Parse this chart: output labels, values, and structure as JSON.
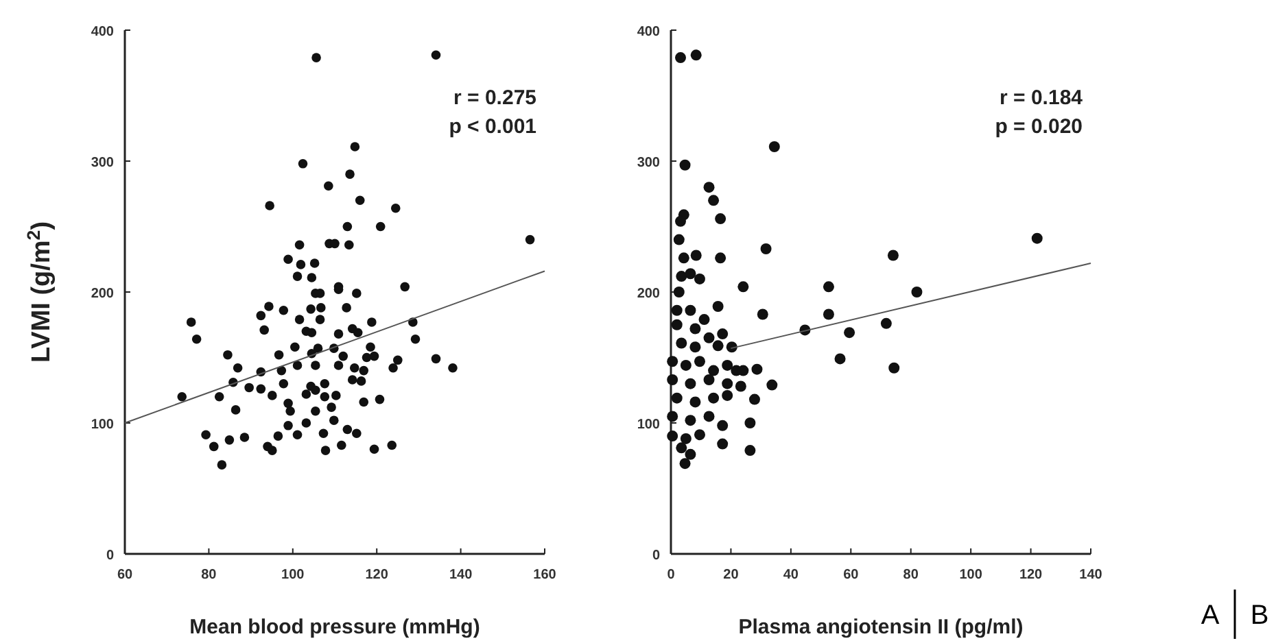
{
  "chart_data": [
    {
      "type": "scatter",
      "xlabel": "Mean blood pressure (mmHg)",
      "ylabel": "LVMI (g/m$^{2}$)",
      "xlim": [
        60,
        160
      ],
      "xticks": [
        60,
        80,
        100,
        120,
        140,
        160
      ],
      "ylim": [
        0,
        400
      ],
      "yticks": [
        0,
        100,
        200,
        300,
        400
      ],
      "grid": false,
      "marker": "circle",
      "annotations": [
        "r = 0.275",
        "p < 0.001"
      ],
      "series": [
        {
          "color": "#111111",
          "x": [
            105.6,
            134.1,
            114.8,
            102.4,
            113.6,
            108.5,
            116,
            94.5,
            124.5,
            113,
            120.9,
            156.5,
            101.6,
            108.7,
            110,
            113.4,
            98.9,
            101.9,
            105.2,
            110.9,
            126.7,
            101.1,
            104.5,
            110.9,
            105.4,
            106.5,
            115.2,
            94.3,
            97.8,
            92.4,
            104.3,
            106.7,
            112.8,
            101.6,
            106.5,
            75.8,
            118.8,
            128.6,
            103.2,
            104.5,
            93.2,
            77.1,
            110.9,
            114.2,
            115.5,
            129.2,
            100.5,
            106,
            109.8,
            118.5,
            84.5,
            96.7,
            104.5,
            112,
            117.6,
            119.4,
            134.1,
            125,
            138.1,
            86.9,
            92.4,
            97.3,
            101.1,
            105.4,
            110.9,
            114.7,
            116.9,
            123.9,
            85.8,
            89.6,
            92.4,
            97.8,
            104.3,
            107.6,
            114.2,
            116.3,
            73.6,
            82.5,
            95.1,
            98.9,
            103.2,
            105.4,
            107.6,
            110.3,
            116.9,
            120.7,
            86.4,
            99.4,
            105.4,
            109.2,
            98.9,
            103.2,
            109.8,
            113,
            115.2,
            79.3,
            84.9,
            88.5,
            96.5,
            101.1,
            107.3,
            81.2,
            94,
            95.1,
            107.8,
            111.6,
            119.4,
            123.6,
            83.1
          ],
          "values": [
            379,
            381,
            311,
            298,
            290,
            281,
            270,
            266,
            264,
            250,
            250,
            240,
            236,
            237,
            237,
            236,
            225,
            221,
            222,
            204,
            204,
            212,
            211,
            202,
            199,
            199,
            199,
            189,
            186,
            182,
            187,
            188,
            188,
            179,
            179,
            177,
            177,
            177,
            170,
            169,
            171,
            164,
            168,
            172,
            169,
            164,
            158,
            157,
            157,
            158,
            152,
            152,
            153,
            151,
            150,
            151,
            149,
            148,
            142,
            142,
            139,
            140,
            144,
            144,
            144,
            142,
            140,
            142,
            131,
            127,
            126,
            130,
            128,
            130,
            133,
            132,
            120,
            120,
            121,
            115,
            122,
            125,
            120,
            121,
            116,
            118,
            110,
            109,
            109,
            112,
            98,
            100,
            102,
            95,
            92,
            91,
            87,
            89,
            90,
            91,
            92,
            82,
            82,
            79,
            79,
            83,
            80,
            83,
            68
          ]
        },
        {
          "type": "line",
          "color": "#555555",
          "marker": "none",
          "line_style": "solid",
          "x": [
            60,
            160
          ],
          "values": [
            100,
            216
          ]
        }
      ]
    },
    {
      "type": "scatter",
      "xlabel": "Plasma angiotensin II (pg/ml)",
      "xlim": [
        0,
        140
      ],
      "xticks": [
        0,
        20,
        40,
        60,
        80,
        100,
        120,
        140
      ],
      "ylim": [
        0,
        400
      ],
      "yticks": [
        0,
        100,
        200,
        300,
        400
      ],
      "grid": false,
      "marker": "circle",
      "annotations": [
        "r = 0.184",
        "p = 0.020",
        "A",
        "B"
      ],
      "series": [
        {
          "color": "#111111",
          "x": [
            3.2,
            8.4,
            34.5,
            4.7,
            12.7,
            14.2,
            4.3,
            3.2,
            16.5,
            2.7,
            31.7,
            122.1,
            4.3,
            8.4,
            16.5,
            74.1,
            3.5,
            6.5,
            9.6,
            24.1,
            52.6,
            82,
            2.7,
            15.7,
            6.5,
            2,
            30.6,
            52.6,
            44.7,
            59.5,
            71.8,
            17.2,
            15.7,
            20.3,
            56.4,
            74.4,
            2,
            8.1,
            11.1,
            3.5,
            8.1,
            12.7,
            0.5,
            5,
            9.6,
            14.2,
            18.8,
            21.8,
            24.1,
            28.7,
            33.7,
            0.5,
            6.5,
            12.7,
            18.8,
            23.3,
            27.9,
            2,
            8.1,
            14.2,
            18.8,
            0.5,
            6.5,
            12.7,
            17.2,
            26.4,
            0.5,
            5,
            9.6,
            3.5,
            6.5,
            4.7,
            17.2,
            26.4
          ],
          "values": [
            379,
            381,
            311,
            297,
            280,
            270,
            259,
            254,
            256,
            240,
            233,
            241,
            226,
            228,
            226,
            228,
            212,
            214,
            210,
            204,
            204,
            200,
            200,
            189,
            186,
            186,
            183,
            183,
            171,
            169,
            176,
            168,
            159,
            158,
            149,
            142,
            175,
            172,
            179,
            161,
            158,
            165,
            147,
            144,
            147,
            140,
            144,
            140,
            140,
            141,
            129,
            133,
            130,
            133,
            130,
            128,
            118,
            119,
            116,
            119,
            121,
            105,
            102,
            105,
            98,
            100,
            90,
            88,
            91,
            81,
            76,
            69,
            84,
            79
          ]
        },
        {
          "type": "line",
          "color": "#555555",
          "marker": "none",
          "line_style": "solid",
          "x": [
            20,
            140
          ],
          "values": [
            157,
            222
          ]
        }
      ]
    }
  ]
}
